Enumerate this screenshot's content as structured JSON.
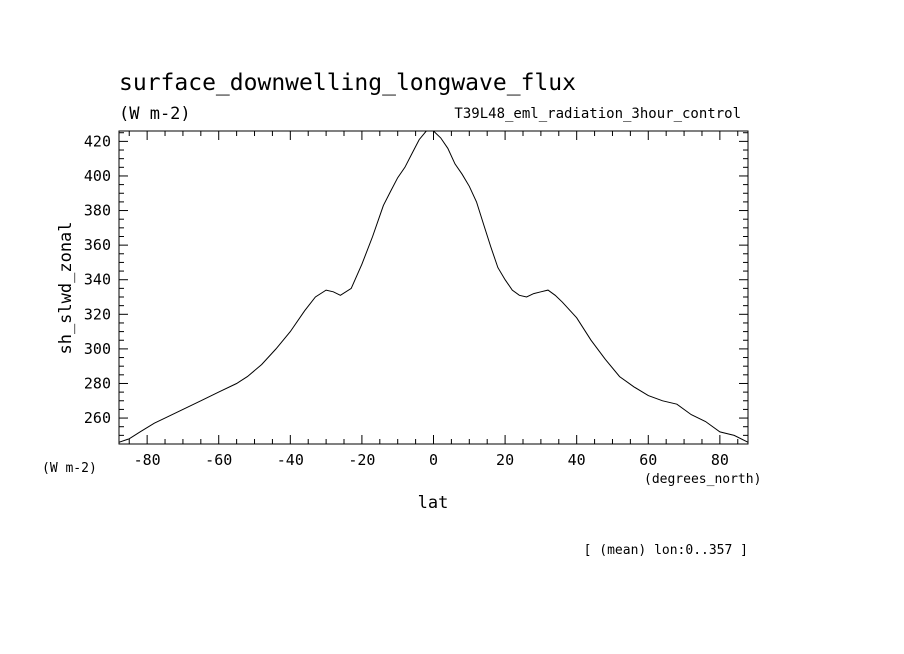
{
  "chart_data": {
    "type": "line",
    "title": "surface_downwelling_longwave_flux",
    "units": "(W m-2)",
    "subtitle": "T39L48_eml_radiation_3hour_control",
    "ylabel": "sh_slwd_zonal",
    "y_units": "(W m-2)",
    "xlabel": "lat",
    "x_units": "(degrees_north)",
    "footnote": "[ (mean) lon:0..357 ]",
    "xlim": [
      -87.86,
      87.86
    ],
    "ylim": [
      245,
      426
    ],
    "x_ticks": [
      -80,
      -60,
      -40,
      -20,
      0,
      20,
      40,
      60,
      80
    ],
    "x_tick_labels": [
      "-80",
      "-60",
      "-40",
      "-20",
      "0",
      "20",
      "40",
      "60",
      "80"
    ],
    "y_ticks": [
      260,
      280,
      300,
      320,
      340,
      360,
      380,
      400,
      420
    ],
    "y_tick_labels": [
      "260",
      "280",
      "300",
      "320",
      "340",
      "360",
      "380",
      "400",
      "420"
    ],
    "series": [
      {
        "x": [
          -87.9,
          -85,
          -82,
          -78,
          -75,
          -70,
          -65,
          -60,
          -55,
          -52,
          -48,
          -44,
          -40,
          -36,
          -33,
          -30,
          -28,
          -26,
          -23,
          -20,
          -17,
          -14,
          -12,
          -10,
          -8,
          -6,
          -4,
          -2,
          0,
          2,
          4,
          6,
          8,
          10,
          12,
          14,
          16,
          18,
          20,
          22,
          24,
          26,
          28,
          30,
          32,
          34,
          36,
          40,
          44,
          48,
          52,
          56,
          60,
          64,
          68,
          72,
          76,
          80,
          84,
          87.9
        ],
        "y": [
          246,
          248,
          252,
          257,
          260,
          265,
          270,
          275,
          280,
          284,
          291,
          300,
          310,
          322,
          330,
          334,
          333,
          331,
          335,
          349,
          365,
          383,
          391,
          399,
          405,
          413,
          421,
          426,
          426,
          422,
          416,
          407,
          401,
          394,
          385,
          372,
          359,
          347,
          340,
          334,
          331,
          330,
          332,
          333,
          334,
          331,
          327,
          318,
          305,
          294,
          284,
          278,
          273,
          270,
          268,
          262,
          258,
          252,
          250,
          246
        ]
      }
    ]
  }
}
